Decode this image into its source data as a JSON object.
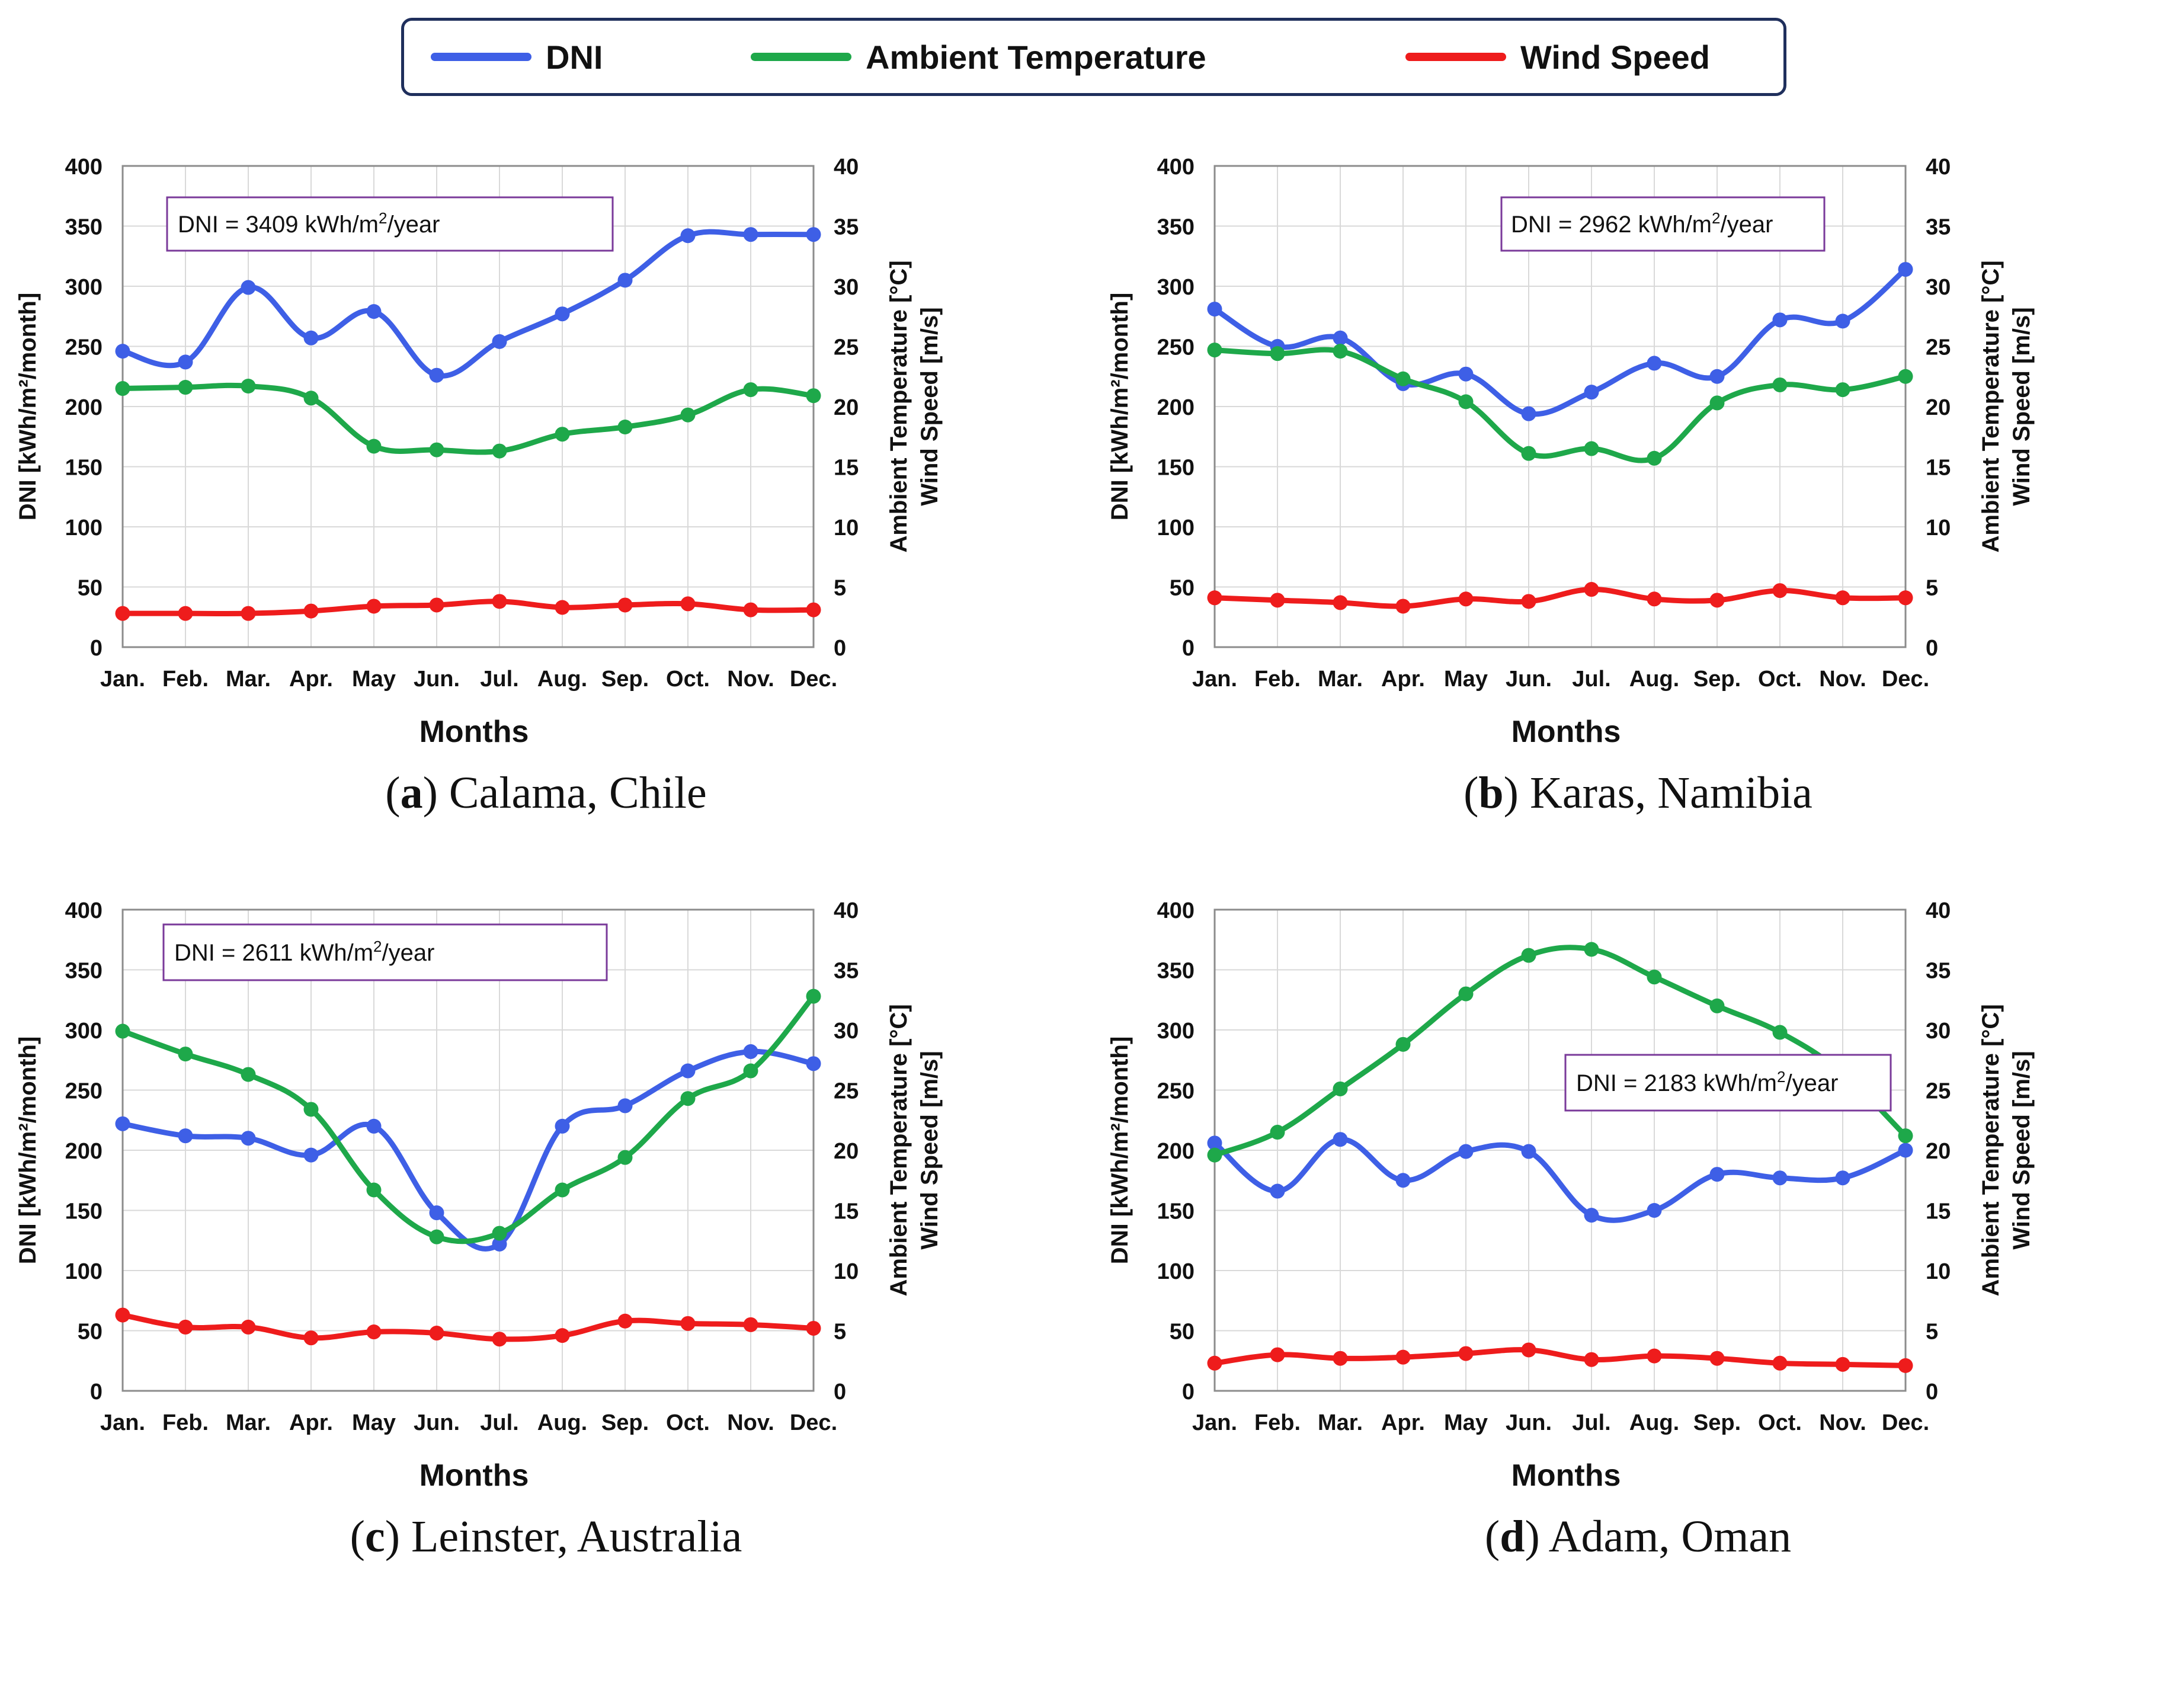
{
  "legend": {
    "items": [
      {
        "label": "DNI",
        "color": "#3e5fe6"
      },
      {
        "label": "Ambient Temperature",
        "color": "#1ea84a"
      },
      {
        "label": "Wind Speed",
        "color": "#ee1c1c"
      }
    ]
  },
  "chart_data": [
    {
      "type": "line",
      "panel_letter": "a",
      "caption_text": "Calama, Chile",
      "annotation_prefix": "DNI = 3409 kWh/m",
      "annotation_sup": "2",
      "annotation_suffix": "/year",
      "categories": [
        "Jan.",
        "Feb.",
        "Mar.",
        "Apr.",
        "May",
        "Jun.",
        "Jul.",
        "Aug.",
        "Sep.",
        "Oct.",
        "Nov.",
        "Dec."
      ],
      "xlabel": "Months",
      "ylabel": "DNI [kWh/m²/month]",
      "y2label_line1": "Ambient Temperature [°C]",
      "y2label_line2": "Wind Speed [m/s]",
      "ylim": [
        0,
        400
      ],
      "y2lim": [
        0,
        40
      ],
      "yticks": [
        "0",
        "50",
        "100",
        "150",
        "200",
        "250",
        "300",
        "350",
        "400"
      ],
      "y2ticks": [
        "0",
        "5",
        "10",
        "15",
        "20",
        "25",
        "30",
        "35",
        "40"
      ],
      "grid": true,
      "series": [
        {
          "name": "DNI",
          "axis": "left",
          "color": "#3e5fe6",
          "values": [
            246,
            237,
            299,
            257,
            279,
            226,
            254,
            277,
            305,
            342,
            343,
            343
          ]
        },
        {
          "name": "Ambient Temperature",
          "axis": "right",
          "color": "#1ea84a",
          "values": [
            21.5,
            21.6,
            21.7,
            20.7,
            16.7,
            16.4,
            16.3,
            17.7,
            18.3,
            19.3,
            21.4,
            20.9
          ]
        },
        {
          "name": "Wind Speed",
          "axis": "right",
          "color": "#ee1c1c",
          "values": [
            2.8,
            2.8,
            2.8,
            3.0,
            3.4,
            3.5,
            3.8,
            3.3,
            3.5,
            3.6,
            3.1,
            3.1
          ]
        }
      ]
    },
    {
      "type": "line",
      "panel_letter": "b",
      "caption_text": "Karas, Namibia",
      "annotation_prefix": "DNI = 2962 kWh/m",
      "annotation_sup": "2",
      "annotation_suffix": "/year",
      "categories": [
        "Jan.",
        "Feb.",
        "Mar.",
        "Apr.",
        "May",
        "Jun.",
        "Jul.",
        "Aug.",
        "Sep.",
        "Oct.",
        "Nov.",
        "Dec."
      ],
      "xlabel": "Months",
      "ylabel": "DNI [kWh/m²/month]",
      "y2label_line1": "Ambient Temperature [°C]",
      "y2label_line2": "Wind Speed [m/s]",
      "ylim": [
        0,
        400
      ],
      "y2lim": [
        0,
        40
      ],
      "yticks": [
        "0",
        "50",
        "100",
        "150",
        "200",
        "250",
        "300",
        "350",
        "400"
      ],
      "y2ticks": [
        "0",
        "5",
        "10",
        "15",
        "20",
        "25",
        "30",
        "35",
        "40"
      ],
      "grid": true,
      "series": [
        {
          "name": "DNI",
          "axis": "left",
          "color": "#3e5fe6",
          "values": [
            281,
            250,
            257,
            219,
            227,
            194,
            212,
            236,
            225,
            272,
            271,
            314
          ]
        },
        {
          "name": "Ambient Temperature",
          "axis": "right",
          "color": "#1ea84a",
          "values": [
            24.7,
            24.4,
            24.6,
            22.3,
            20.4,
            16.1,
            16.5,
            15.7,
            20.3,
            21.8,
            21.4,
            22.5
          ]
        },
        {
          "name": "Wind Speed",
          "axis": "right",
          "color": "#ee1c1c",
          "values": [
            4.1,
            3.9,
            3.7,
            3.4,
            4.0,
            3.8,
            4.8,
            4.0,
            3.9,
            4.7,
            4.1,
            4.1
          ]
        }
      ]
    },
    {
      "type": "line",
      "panel_letter": "c",
      "caption_text": "Leinster, Australia",
      "annotation_prefix": "DNI = 2611 kWh/m",
      "annotation_sup": "2",
      "annotation_suffix": "/year",
      "categories": [
        "Jan.",
        "Feb.",
        "Mar.",
        "Apr.",
        "May",
        "Jun.",
        "Jul.",
        "Aug.",
        "Sep.",
        "Oct.",
        "Nov.",
        "Dec."
      ],
      "xlabel": "Months",
      "ylabel": "DNI [kWh/m²/month]",
      "y2label_line1": "Ambient Temperature [°C]",
      "y2label_line2": "Wind Speed [m/s]",
      "ylim": [
        0,
        400
      ],
      "y2lim": [
        0,
        40
      ],
      "yticks": [
        "0",
        "50",
        "100",
        "150",
        "200",
        "250",
        "300",
        "350",
        "400"
      ],
      "y2ticks": [
        "0",
        "5",
        "10",
        "15",
        "20",
        "25",
        "30",
        "35",
        "40"
      ],
      "grid": true,
      "series": [
        {
          "name": "DNI",
          "axis": "left",
          "color": "#3e5fe6",
          "values": [
            222,
            212,
            210,
            196,
            220,
            148,
            122,
            220,
            237,
            266,
            282,
            272
          ]
        },
        {
          "name": "Ambient Temperature",
          "axis": "right",
          "color": "#1ea84a",
          "values": [
            29.9,
            28.0,
            26.3,
            23.4,
            16.7,
            12.8,
            13.1,
            16.7,
            19.4,
            24.3,
            26.6,
            32.8
          ]
        },
        {
          "name": "Wind Speed",
          "axis": "right",
          "color": "#ee1c1c",
          "values": [
            6.3,
            5.3,
            5.3,
            4.4,
            4.9,
            4.8,
            4.3,
            4.6,
            5.8,
            5.6,
            5.5,
            5.2
          ]
        }
      ]
    },
    {
      "type": "line",
      "panel_letter": "d",
      "caption_text": "Adam, Oman",
      "annotation_prefix": "DNI = 2183 kWh/m",
      "annotation_sup": "2",
      "annotation_suffix": "/year",
      "categories": [
        "Jan.",
        "Feb.",
        "Mar.",
        "Apr.",
        "May",
        "Jun.",
        "Jul.",
        "Aug.",
        "Sep.",
        "Oct.",
        "Nov.",
        "Dec."
      ],
      "xlabel": "Months",
      "ylabel": "DNI [kWh/m²/month]",
      "y2label_line1": "Ambient Temperature [°C]",
      "y2label_line2": "Wind Speed [m/s]",
      "ylim": [
        0,
        400
      ],
      "y2lim": [
        0,
        40
      ],
      "yticks": [
        "0",
        "50",
        "100",
        "150",
        "200",
        "250",
        "300",
        "350",
        "400"
      ],
      "y2ticks": [
        "0",
        "5",
        "10",
        "15",
        "20",
        "25",
        "30",
        "35",
        "40"
      ],
      "grid": true,
      "series": [
        {
          "name": "DNI",
          "axis": "left",
          "color": "#3e5fe6",
          "values": [
            206,
            166,
            209,
            175,
            199,
            199,
            146,
            150,
            180,
            177,
            177,
            200
          ]
        },
        {
          "name": "Ambient Temperature",
          "axis": "right",
          "color": "#1ea84a",
          "values": [
            19.6,
            21.5,
            25.1,
            28.8,
            33.0,
            36.2,
            36.7,
            34.4,
            32.0,
            29.8,
            26.4,
            21.2
          ]
        },
        {
          "name": "Wind Speed",
          "axis": "right",
          "color": "#ee1c1c",
          "values": [
            2.3,
            3.0,
            2.7,
            2.8,
            3.1,
            3.4,
            2.6,
            2.9,
            2.7,
            2.3,
            2.2,
            2.1
          ]
        }
      ]
    }
  ]
}
